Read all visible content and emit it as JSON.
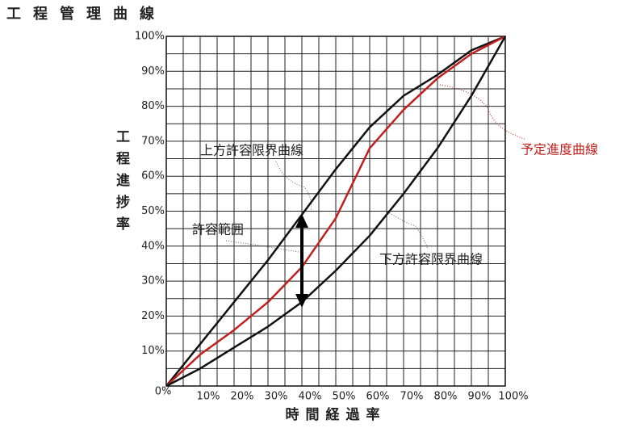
{
  "chart_data": {
    "type": "line",
    "title": "工程管理曲線",
    "x_label": "時間経過率",
    "y_label": "工程進捗率",
    "x": [
      0,
      10,
      20,
      30,
      40,
      50,
      60,
      70,
      80,
      90,
      100
    ],
    "series": [
      {
        "name": "上方許容限界曲線",
        "color": "#111111",
        "values": [
          0,
          12,
          24,
          36,
          49,
          62,
          74,
          83,
          89,
          96,
          100
        ]
      },
      {
        "name": "予定進度曲線",
        "color": "#c0201e",
        "values": [
          0,
          9,
          16,
          24,
          34,
          48,
          68,
          79,
          88,
          95,
          100
        ]
      },
      {
        "name": "下方許容限界曲線",
        "color": "#111111",
        "values": [
          0,
          5,
          11,
          17,
          24,
          33,
          43,
          55,
          68,
          83,
          100
        ]
      }
    ],
    "range_label": "許容範囲",
    "xlim": [
      0,
      100
    ],
    "ylim": [
      0,
      100
    ],
    "xticks": [
      {
        "value": 0,
        "label": "0%"
      },
      {
        "value": 10,
        "label": "10%"
      },
      {
        "value": 20,
        "label": "20%"
      },
      {
        "value": 30,
        "label": "30%"
      },
      {
        "value": 40,
        "label": "40%"
      },
      {
        "value": 50,
        "label": "50%"
      },
      {
        "value": 60,
        "label": "60%"
      },
      {
        "value": 70,
        "label": "70%"
      },
      {
        "value": 80,
        "label": "80%"
      },
      {
        "value": 90,
        "label": "90%"
      },
      {
        "value": 100,
        "label": "100%"
      }
    ],
    "yticks": [
      {
        "value": 10,
        "label": "10%"
      },
      {
        "value": 20,
        "label": "20%"
      },
      {
        "value": 30,
        "label": "30%"
      },
      {
        "value": 40,
        "label": "40%"
      },
      {
        "value": 50,
        "label": "50%"
      },
      {
        "value": 60,
        "label": "60%"
      },
      {
        "value": 70,
        "label": "70%"
      },
      {
        "value": 80,
        "label": "80%"
      },
      {
        "value": 90,
        "label": "90%"
      },
      {
        "value": 100,
        "label": "100%"
      }
    ],
    "grid": true,
    "minor_grid": true
  }
}
